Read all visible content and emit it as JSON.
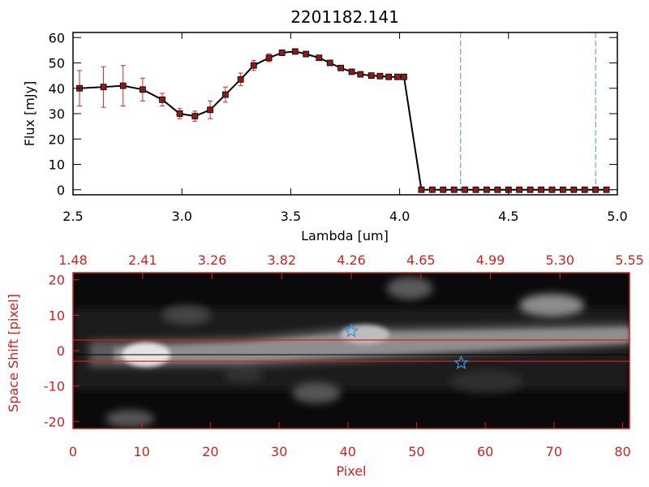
{
  "chart_data": [
    {
      "type": "line",
      "title": "2201182.141",
      "xlabel": "Lambda [um]",
      "ylabel": "Flux [mJy]",
      "xlim": [
        2.5,
        5.0
      ],
      "ylim": [
        -2,
        62
      ],
      "xticks": [
        "2.5",
        "3.0",
        "3.5",
        "4.0",
        "4.5",
        "5.0"
      ],
      "yticks": [
        "0",
        "10",
        "20",
        "30",
        "40",
        "50",
        "60"
      ],
      "series": [
        {
          "x": [
            2.53,
            2.64,
            2.73,
            2.82,
            2.91,
            2.99,
            3.06,
            3.13,
            3.2,
            3.27,
            3.33,
            3.4,
            3.46,
            3.52,
            3.57,
            3.63,
            3.68,
            3.73,
            3.78,
            3.82,
            3.87,
            3.91,
            3.95,
            3.99,
            4.02,
            4.1,
            4.15,
            4.2,
            4.25,
            4.3,
            4.35,
            4.4,
            4.45,
            4.5,
            4.55,
            4.6,
            4.65,
            4.7,
            4.75,
            4.8,
            4.85,
            4.9,
            4.95
          ],
          "y": [
            40,
            40.5,
            41,
            39.5,
            35.5,
            30,
            29,
            31.5,
            37.5,
            43.5,
            49,
            52,
            54,
            54.5,
            53.5,
            52,
            50,
            48,
            46.5,
            45.5,
            45,
            44.8,
            44.5,
            44.5,
            44.5,
            0,
            0,
            0,
            0,
            0,
            0,
            0,
            0,
            0,
            0,
            0,
            0,
            0,
            0,
            0,
            0,
            0,
            0
          ],
          "err": [
            7,
            8,
            8,
            4.5,
            2.5,
            2,
            2,
            3.5,
            3,
            2.5,
            2,
            1.5,
            1,
            1,
            1,
            1,
            1,
            1,
            1,
            1,
            1,
            1,
            1,
            1,
            1,
            0,
            0,
            0,
            0,
            0,
            0,
            0,
            0,
            0,
            0,
            0,
            0,
            0,
            0,
            0,
            0,
            0,
            0
          ]
        }
      ],
      "vlines": [
        4.28,
        4.9
      ],
      "colors": {
        "line": "#000000",
        "marker": "#8b1a1a",
        "errorbar": "#dd2222",
        "vline": "#4a90d9"
      }
    },
    {
      "type": "heatmap",
      "xlabel": "Pixel",
      "ylabel": "Space Shift [pixel]",
      "xlim": [
        0,
        81
      ],
      "ylim": [
        -22,
        22
      ],
      "xticks": [
        "0",
        "10",
        "20",
        "30",
        "40",
        "50",
        "60",
        "70",
        "80"
      ],
      "yticks": [
        "-20",
        "-10",
        "0",
        "10",
        "20"
      ],
      "top_ticks": [
        "1.48",
        "2.41",
        "3.26",
        "3.82",
        "4.26",
        "4.65",
        "4.99",
        "5.30",
        "5.55"
      ],
      "hlines": [
        3,
        -3
      ],
      "stars": [
        {
          "x": 40.5,
          "y": 5.5
        },
        {
          "x": 56.5,
          "y": -3.5
        }
      ],
      "colors": {
        "axis": "#cc2222",
        "star": "#3a8ee6",
        "background": "#000000"
      }
    }
  ]
}
